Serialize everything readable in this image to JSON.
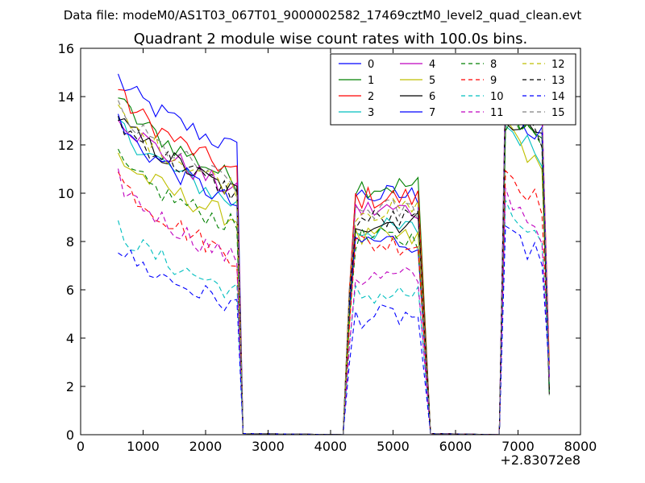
{
  "chart_data": {
    "type": "line",
    "suptitle": "Data file: modeM0/AS1T03_067T01_9000002582_17469cztM0_level2_quad_clean.evt",
    "title": "Quadrant 2 module wise count rates with 100.0s bins.",
    "xlabel": "",
    "ylabel": "",
    "x_offset_label": "+2.83072e8",
    "xlim": [
      0,
      8000
    ],
    "ylim": [
      0,
      16
    ],
    "xticks": [
      0,
      1000,
      2000,
      3000,
      4000,
      5000,
      6000,
      7000,
      8000
    ],
    "yticks": [
      0,
      2,
      4,
      6,
      8,
      10,
      12,
      14,
      16
    ],
    "xtick_labels": [
      "0",
      "1000",
      "2000",
      "3000",
      "4000",
      "5000",
      "6000",
      "7000",
      "8000"
    ],
    "ytick_labels": [
      "0",
      "2",
      "4",
      "6",
      "8",
      "10",
      "12",
      "14",
      "16"
    ],
    "legend_position": "top-right",
    "legend_columns": 4,
    "segments": [
      {
        "t_start": 600,
        "t_end": 2500,
        "points": 20,
        "drop_to": 2700
      },
      {
        "t_start": 4200,
        "t_end": 5400,
        "points": 13,
        "rise_from": 4200,
        "drop_to": 5600
      },
      {
        "t_start": 6800,
        "t_end": 7500,
        "points": 7,
        "rise_from": 6700
      }
    ],
    "series": [
      {
        "name": "0",
        "color": "#0000ff",
        "dash": "solid",
        "values": [
          14.8,
          11.8,
          9.9,
          14.6,
          13.4
        ]
      },
      {
        "name": "1",
        "color": "#008000",
        "dash": "solid",
        "values": [
          14.0,
          10.5,
          10.3,
          13.6,
          12.0
        ]
      },
      {
        "name": "2",
        "color": "#ff0000",
        "dash": "solid",
        "values": [
          14.3,
          10.8,
          9.8,
          14.2,
          12.8
        ]
      },
      {
        "name": "3",
        "color": "#00bfbf",
        "dash": "solid",
        "values": [
          13.0,
          9.5,
          8.5,
          12.8,
          11.3
        ]
      },
      {
        "name": "4",
        "color": "#bf00bf",
        "dash": "solid",
        "values": [
          13.4,
          10.0,
          9.3,
          14.8,
          13.6
        ]
      },
      {
        "name": "5",
        "color": "#bfbf00",
        "dash": "solid",
        "values": [
          11.6,
          8.9,
          8.1,
          13.0,
          10.3
        ]
      },
      {
        "name": "6",
        "color": "#000000",
        "dash": "solid",
        "values": [
          13.2,
          10.0,
          8.8,
          13.2,
          12.2
        ]
      },
      {
        "name": "7",
        "color": "#0000ff",
        "dash": "solid",
        "values": [
          13.0,
          9.5,
          8.0,
          13.8,
          12.0
        ]
      },
      {
        "name": "8",
        "color": "#008000",
        "dash": "dashed",
        "values": [
          11.4,
          8.6,
          8.1,
          13.0,
          12.0
        ]
      },
      {
        "name": "9",
        "color": "#ff0000",
        "dash": "dashed",
        "values": [
          10.8,
          7.3,
          7.9,
          11.0,
          9.2
        ]
      },
      {
        "name": "10",
        "color": "#00bfbf",
        "dash": "dashed",
        "values": [
          8.6,
          5.9,
          5.8,
          9.3,
          7.6
        ]
      },
      {
        "name": "11",
        "color": "#bf00bf",
        "dash": "dashed",
        "values": [
          10.6,
          7.2,
          6.5,
          10.0,
          8.0
        ]
      },
      {
        "name": "12",
        "color": "#bfbf00",
        "dash": "dashed",
        "values": [
          13.4,
          10.2,
          9.3,
          14.3,
          12.9
        ]
      },
      {
        "name": "13",
        "color": "#000000",
        "dash": "dashed",
        "values": [
          13.1,
          10.0,
          8.9,
          14.0,
          11.7
        ]
      },
      {
        "name": "14",
        "color": "#0000ff",
        "dash": "dashed",
        "values": [
          7.8,
          5.3,
          4.9,
          8.2,
          7.2
        ]
      },
      {
        "name": "15",
        "color": "#808080",
        "dash": "dashed",
        "values": [
          13.5,
          10.3,
          9.3,
          14.5,
          13.0
        ]
      }
    ]
  }
}
